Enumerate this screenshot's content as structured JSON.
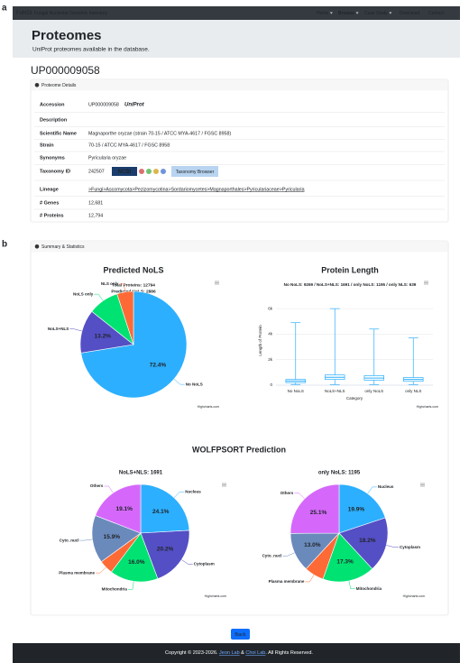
{
  "figure_labels": [
    "a",
    "b"
  ],
  "navbar": {
    "brand": "FuNGI",
    "subtitle": "Fungal Nucleolar Genomic Inventory",
    "menu": [
      "Home",
      "Browse",
      "Case Study",
      "Download",
      "Contact"
    ]
  },
  "header": {
    "title": "Proteomes",
    "subtitle": "UniProt proteomes available in the database."
  },
  "proteome_id": "UP000009058",
  "details": {
    "title": "Proteome Details",
    "rows": [
      {
        "label": "Accession",
        "value": "UP000009058"
      },
      {
        "label": "Description"
      },
      {
        "label": "Scientific Name",
        "value": "Magnaporthe oryzae (strain 70-15 / ATCC MYA-4617 / FGSC 8958)"
      },
      {
        "label": "Strain",
        "value": "70-15 / ATCC MYA-4617 / FGSC 8958"
      },
      {
        "label": "Synonyms",
        "value": "Pyricularia oryzae"
      },
      {
        "label": "Taxonomy ID",
        "value": "242507"
      },
      {
        "label": "Lineage",
        "value": ">Fungi>Ascomycota>Pezizomycotina>Sordariomycetes>Magnaporthales>Pyriculariaceae>Pyricularia"
      },
      {
        "label": "# Genes",
        "value": "12,681"
      },
      {
        "label": "# Proteins",
        "value": "12,794"
      }
    ],
    "uniprot_logo": "UniProt",
    "ncbi_logo": "NCBI",
    "taxonomy_browser": "Taxonomy Browser"
  },
  "summary": {
    "title": "Summary & Statistics",
    "wolfpsort_heading": "WOLFPSORT Prediction"
  },
  "chart_data": [
    {
      "type": "pie",
      "title": "Predicted NoLS",
      "subtitle": [
        "Total Proteins: 12794",
        "Predicted NoLS: 2886"
      ],
      "categories": [
        "No NoLS",
        "NoLS+NLS",
        "NoLS only",
        "NLS only"
      ],
      "values": [
        72.4,
        13.2,
        9.3,
        5.0
      ],
      "value_labels": [
        "72.4%",
        "13.2%",
        null,
        null
      ],
      "colors": [
        "#2caffe",
        "#544fc5",
        "#00e272",
        "#fe6a35"
      ],
      "credits": "Highcharts.com"
    },
    {
      "type": "boxplot",
      "title": "Protein Length",
      "subtitle": "No NoLS: 9269 / NoLS+NLS: 1691 / only NoLS: 1195 / only NLS: 639",
      "categories": [
        "No NoLS",
        "NoLS+NLS",
        "only NoLS",
        "only NLS"
      ],
      "low": [
        50,
        50,
        50,
        50
      ],
      "q1": [
        200,
        450,
        400,
        300
      ],
      "median": [
        330,
        620,
        560,
        450
      ],
      "q3": [
        450,
        800,
        750,
        600
      ],
      "high": [
        4900,
        6000,
        4400,
        3700
      ],
      "color": "#2caffe",
      "ylim": [
        0,
        7000
      ],
      "yticks": [
        0,
        {
          "value": 2000,
          "label": "2k"
        },
        {
          "value": 4000,
          "label": "4k"
        },
        {
          "value": 6000,
          "label": "6k"
        }
      ],
      "grid": true,
      "y_label": "Length of Protein",
      "x_label": "Category",
      "credits": "Highcharts.com"
    },
    {
      "type": "pie",
      "title": "NoLS+NLS: 1691",
      "categories": [
        "Nucleus",
        "Cytoplasm",
        "Mitochondria",
        "Plasma membrane",
        "Cyto_nucl",
        "Others"
      ],
      "values": [
        24.1,
        20.2,
        16.0,
        4.7,
        15.9,
        19.1
      ],
      "value_labels": [
        "24.1%",
        "20.2%",
        "16.0%",
        null,
        "15.9%",
        "19.1%"
      ],
      "colors": [
        "#2caffe",
        "#544fc5",
        "#00e272",
        "#fe6a35",
        "#6b8abc",
        "#d568fb"
      ],
      "credits": "Highcharts.com"
    },
    {
      "type": "pie",
      "title": "only NoLS: 1195",
      "categories": [
        "Nucleus",
        "Cytoplasm",
        "Mitochondria",
        "Plasma membrane",
        "Cyto_nucl",
        "Others"
      ],
      "values": [
        19.9,
        18.2,
        17.3,
        6.5,
        13.0,
        25.1
      ],
      "value_labels": [
        "19.9%",
        "18.2%",
        "17.3%",
        null,
        "13.0%",
        "25.1%"
      ],
      "colors": [
        "#2caffe",
        "#544fc5",
        "#00e272",
        "#fe6a35",
        "#6b8abc",
        "#d568fb"
      ],
      "credits": "Highcharts.com"
    }
  ],
  "back_button": "Back",
  "footer": [
    "Copyright © 2023-2026.",
    "Jeon Lab",
    "&",
    "Choi Lab",
    ". All Rights Reserved."
  ]
}
